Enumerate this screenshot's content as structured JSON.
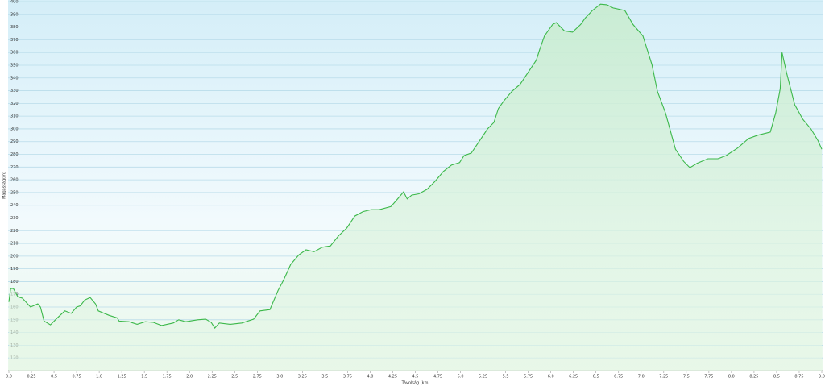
{
  "chart_data": {
    "type": "area",
    "x_label": "Távolság (km)",
    "y_label": "Magasság(m)",
    "x": [
      0,
      0.02,
      0.05,
      0.1,
      0.15,
      0.24,
      0.32,
      0.35,
      0.39,
      0.46,
      0.53,
      0.62,
      0.69,
      0.75,
      0.79,
      0.84,
      0.9,
      0.96,
      0.99,
      1.11,
      1.2,
      1.22,
      1.33,
      1.42,
      1.51,
      1.6,
      1.69,
      1.82,
      1.88,
      1.96,
      2.09,
      2.18,
      2.24,
      2.28,
      2.33,
      2.45,
      2.58,
      2.71,
      2.78,
      2.89,
      2.98,
      3.04,
      3.12,
      3.21,
      3.29,
      3.38,
      3.47,
      3.56,
      3.65,
      3.74,
      3.83,
      3.92,
      4.01,
      4.1,
      4.23,
      4.28,
      4.37,
      4.41,
      4.46,
      4.54,
      4.63,
      4.72,
      4.81,
      4.9,
      4.99,
      5.04,
      5.12,
      5.21,
      5.3,
      5.37,
      5.42,
      5.48,
      5.57,
      5.66,
      5.75,
      5.84,
      5.88,
      5.93,
      6.02,
      6.06,
      6.15,
      6.24,
      6.33,
      6.38,
      6.46,
      6.55,
      6.62,
      6.69,
      6.82,
      6.91,
      7.02,
      7.12,
      7.18,
      7.27,
      7.38,
      7.47,
      7.54,
      7.62,
      7.74,
      7.85,
      7.94,
      8.07,
      8.19,
      8.29,
      8.43,
      8.49,
      8.54,
      8.56,
      8.61,
      8.7,
      8.79,
      8.88,
      8.96,
      9.0
    ],
    "values": [
      164,
      174.5,
      174.5,
      168,
      167,
      160,
      162.5,
      160,
      149,
      146,
      151,
      157,
      155,
      160,
      161,
      165.5,
      167.5,
      162.5,
      157,
      153.5,
      151.5,
      149,
      148.5,
      146.5,
      148.5,
      148,
      145.5,
      147.5,
      150,
      148.5,
      150,
      150.5,
      148,
      143.5,
      147.5,
      146.5,
      147.5,
      150.5,
      157,
      158,
      173,
      181,
      193.5,
      201,
      205,
      203.5,
      207,
      208,
      216,
      222,
      231.5,
      235,
      236.5,
      236.5,
      239,
      243,
      250.5,
      245,
      248,
      249,
      252.5,
      259,
      266.5,
      271.5,
      273.5,
      279,
      281,
      290.5,
      300,
      305,
      316,
      322,
      329.5,
      335,
      344.5,
      354,
      363,
      373,
      382,
      383.5,
      377,
      376,
      382,
      387,
      393,
      398,
      397.5,
      395,
      393,
      382,
      373,
      350.5,
      329.5,
      312.5,
      284,
      274.5,
      269.5,
      273,
      276.5,
      276.5,
      279,
      285,
      292.5,
      295,
      297.5,
      312.5,
      331.5,
      360,
      344,
      319,
      307.5,
      300,
      290.5,
      284
    ],
    "color": "#3cb84a",
    "xlim": [
      0,
      9
    ],
    "xticks": [
      {
        "value": 0,
        "label": "0.0"
      },
      0.25,
      0.5,
      0.75,
      {
        "value": 1,
        "label": "1.0"
      },
      1.25,
      1.5,
      1.75,
      {
        "value": 2,
        "label": "2.0"
      },
      2.25,
      2.5,
      2.75,
      {
        "value": 3,
        "label": "3.0"
      },
      3.25,
      3.5,
      3.75,
      {
        "value": 4,
        "label": "4.0"
      },
      4.25,
      4.5,
      4.75,
      {
        "value": 5,
        "label": "5.0"
      },
      5.25,
      5.5,
      5.75,
      {
        "value": 6,
        "label": "6.0"
      },
      6.25,
      6.5,
      6.75,
      {
        "value": 7,
        "label": "7.0"
      },
      7.25,
      7.5,
      7.75,
      {
        "value": 8,
        "label": "8.0"
      },
      8.25,
      8.5,
      8.75,
      {
        "value": 9,
        "label": "9.0"
      }
    ],
    "ylim": [
      110,
      400
    ],
    "yticks": [
      120,
      130,
      140,
      150,
      160,
      170,
      180,
      190,
      200,
      210,
      220,
      230,
      240,
      250,
      260,
      270,
      280,
      290,
      300,
      310,
      320,
      330,
      340,
      350,
      360,
      370,
      380,
      390,
      400
    ],
    "grid": true
  }
}
